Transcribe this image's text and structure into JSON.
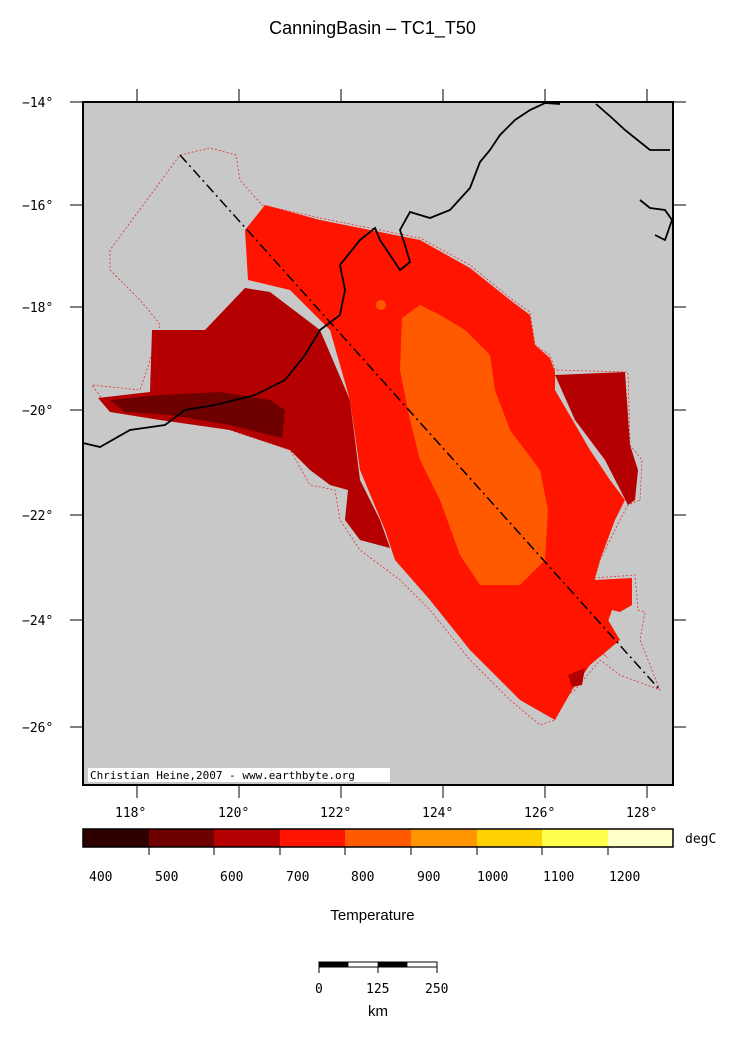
{
  "title": "CanningBasin – TC1_T50",
  "map": {
    "lat_ticks": [
      "−14°",
      "−16°",
      "−18°",
      "−20°",
      "−22°",
      "−24°",
      "−26°"
    ],
    "lon_ticks": [
      "118°",
      "120°",
      "122°",
      "124°",
      "126°",
      "128°"
    ],
    "credit": "Christian Heine,2007 - www.earthbyte.org",
    "ocean_color": "#c8c8c8",
    "coastline_color": "#000000",
    "basin_outline_color": "#e03030",
    "section_line": "dash-dot profile line"
  },
  "colorbar": {
    "unit": "degC",
    "label": "Temperature",
    "tick_labels": [
      "400",
      "500",
      "600",
      "700",
      "800",
      "900",
      "1000",
      "1100",
      "1200"
    ],
    "colors": [
      "#2e0000",
      "#6e0000",
      "#b40000",
      "#ff1400",
      "#ff5a00",
      "#ff9600",
      "#ffd200",
      "#ffff50",
      "#ffffc8",
      "#ffffe8"
    ]
  },
  "scalebar": {
    "tick_labels": [
      "0",
      "125",
      "250"
    ],
    "unit": "km"
  }
}
